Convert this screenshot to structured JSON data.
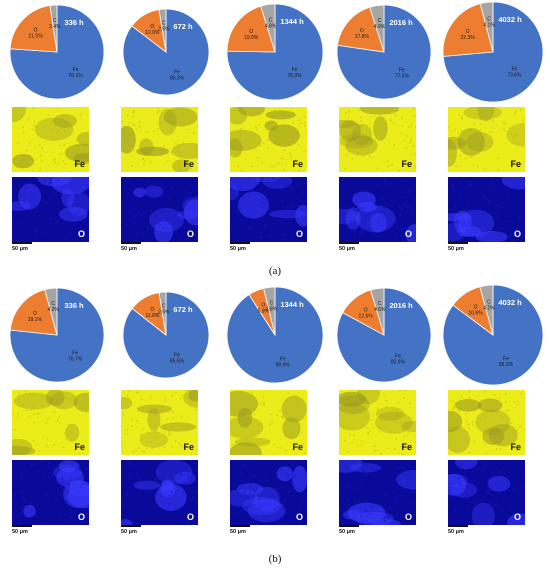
{
  "chart_data": [
    {
      "panel": "(a)",
      "type": "pie",
      "charts": [
        {
          "time": "336 h",
          "slices": [
            {
              "name": "Fe",
              "value": 76.1,
              "label": "76.1%"
            },
            {
              "name": "O",
              "value": 21.5,
              "label": "21.5%"
            },
            {
              "name": "C",
              "value": 2.4,
              "label": "2.4%"
            }
          ]
        },
        {
          "time": "672 h",
          "slices": [
            {
              "name": "Fe",
              "value": 85.3,
              "label": "85.3%"
            },
            {
              "name": "O",
              "value": 12.0,
              "label": "12.0%"
            },
            {
              "name": "C",
              "value": 2.6,
              "label": "2.6%"
            }
          ]
        },
        {
          "time": "1344 h",
          "slices": [
            {
              "name": "Fe",
              "value": 75.3,
              "label": "75.3%"
            },
            {
              "name": "O",
              "value": 19.9,
              "label": "19.9%"
            },
            {
              "name": "C",
              "value": 4.8,
              "label": "4.8%"
            }
          ]
        },
        {
          "time": "2016 h",
          "slices": [
            {
              "name": "Fe",
              "value": 77.3,
              "label": "77.3%"
            },
            {
              "name": "O",
              "value": 17.8,
              "label": "17.8%"
            },
            {
              "name": "C",
              "value": 4.9,
              "label": "4.9%"
            }
          ]
        },
        {
          "time": "4032 h",
          "slices": [
            {
              "name": "Fe",
              "value": 73.6,
              "label": "73.6%"
            },
            {
              "name": "O",
              "value": 22.3,
              "label": "22.3%"
            },
            {
              "name": "C",
              "value": 4.1,
              "label": "4.1%"
            }
          ]
        }
      ]
    },
    {
      "panel": "(b)",
      "type": "pie",
      "charts": [
        {
          "time": "336 h",
          "slices": [
            {
              "name": "Fe",
              "value": 76.7,
              "label": "76.7%"
            },
            {
              "name": "O",
              "value": 19.1,
              "label": "19.1%"
            },
            {
              "name": "C",
              "value": 4.2,
              "label": "4.2%"
            }
          ]
        },
        {
          "time": "672 h",
          "slices": [
            {
              "name": "Fe",
              "value": 85.5,
              "label": "85.5%"
            },
            {
              "name": "O",
              "value": 11.8,
              "label": "11.8%"
            },
            {
              "name": "C",
              "value": 2.6,
              "label": "2.6%"
            }
          ]
        },
        {
          "time": "1344 h",
          "slices": [
            {
              "name": "Fe",
              "value": 90.9,
              "label": "90.9%"
            },
            {
              "name": "O",
              "value": 5.3,
              "label": "5.3%"
            },
            {
              "name": "C",
              "value": 3.8,
              "label": "3.8%"
            }
          ]
        },
        {
          "time": "2016 h",
          "slices": [
            {
              "name": "Fe",
              "value": 82.9,
              "label": "82.9%"
            },
            {
              "name": "O",
              "value": 12.5,
              "label": "12.5%"
            },
            {
              "name": "C",
              "value": 4.6,
              "label": "4.6%"
            }
          ]
        },
        {
          "time": "4032 h",
          "slices": [
            {
              "name": "Fe",
              "value": 85.2,
              "label": "85.2%"
            },
            {
              "name": "O",
              "value": 10.6,
              "label": "10.6%"
            },
            {
              "name": "C",
              "value": 4.2,
              "label": "4.2%"
            }
          ]
        }
      ]
    }
  ],
  "colors": {
    "Fe": "#4472c4",
    "O": "#ed7d31",
    "C": "#a5a5a5",
    "fe_map": "#ecec1a",
    "o_map": "#0a0a9a"
  },
  "map_labels": {
    "fe": "Fe",
    "o": "O"
  },
  "scale_bar": "50 μm",
  "captions": {
    "a": "(a)",
    "b": "(b)"
  }
}
